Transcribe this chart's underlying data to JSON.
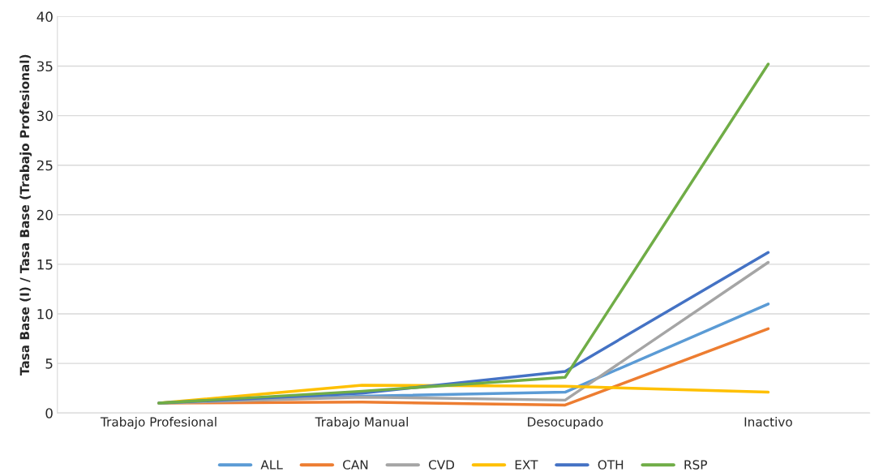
{
  "chart_data": {
    "type": "line",
    "ylabel": "Tasa Base (I) / Tasa Base (Trabajo Profesional)",
    "categories": [
      "Trabajo Profesional",
      "Trabajo Manual",
      "Desocupado",
      "Inactivo"
    ],
    "series": [
      {
        "name": "ALL",
        "color": "#5b9bd5",
        "values": [
          1,
          1.7,
          2.1,
          11.0
        ]
      },
      {
        "name": "CAN",
        "color": "#ed7d31",
        "values": [
          1,
          1.1,
          0.8,
          8.5
        ]
      },
      {
        "name": "CVD",
        "color": "#a5a5a5",
        "values": [
          1,
          1.6,
          1.3,
          15.2
        ]
      },
      {
        "name": "EXT",
        "color": "#ffc000",
        "values": [
          1,
          2.8,
          2.7,
          2.1
        ]
      },
      {
        "name": "OTH",
        "color": "#4472c4",
        "values": [
          1,
          2.0,
          4.2,
          16.2
        ]
      },
      {
        "name": "RSP",
        "color": "#70ad47",
        "values": [
          1,
          2.2,
          3.6,
          35.2
        ]
      }
    ],
    "ylim": [
      0,
      40
    ],
    "yticks": [
      0,
      5,
      10,
      15,
      20,
      25,
      30,
      35,
      40
    ],
    "grid": "y",
    "legend": "bottom",
    "marker": "none",
    "line_style": "solid"
  }
}
